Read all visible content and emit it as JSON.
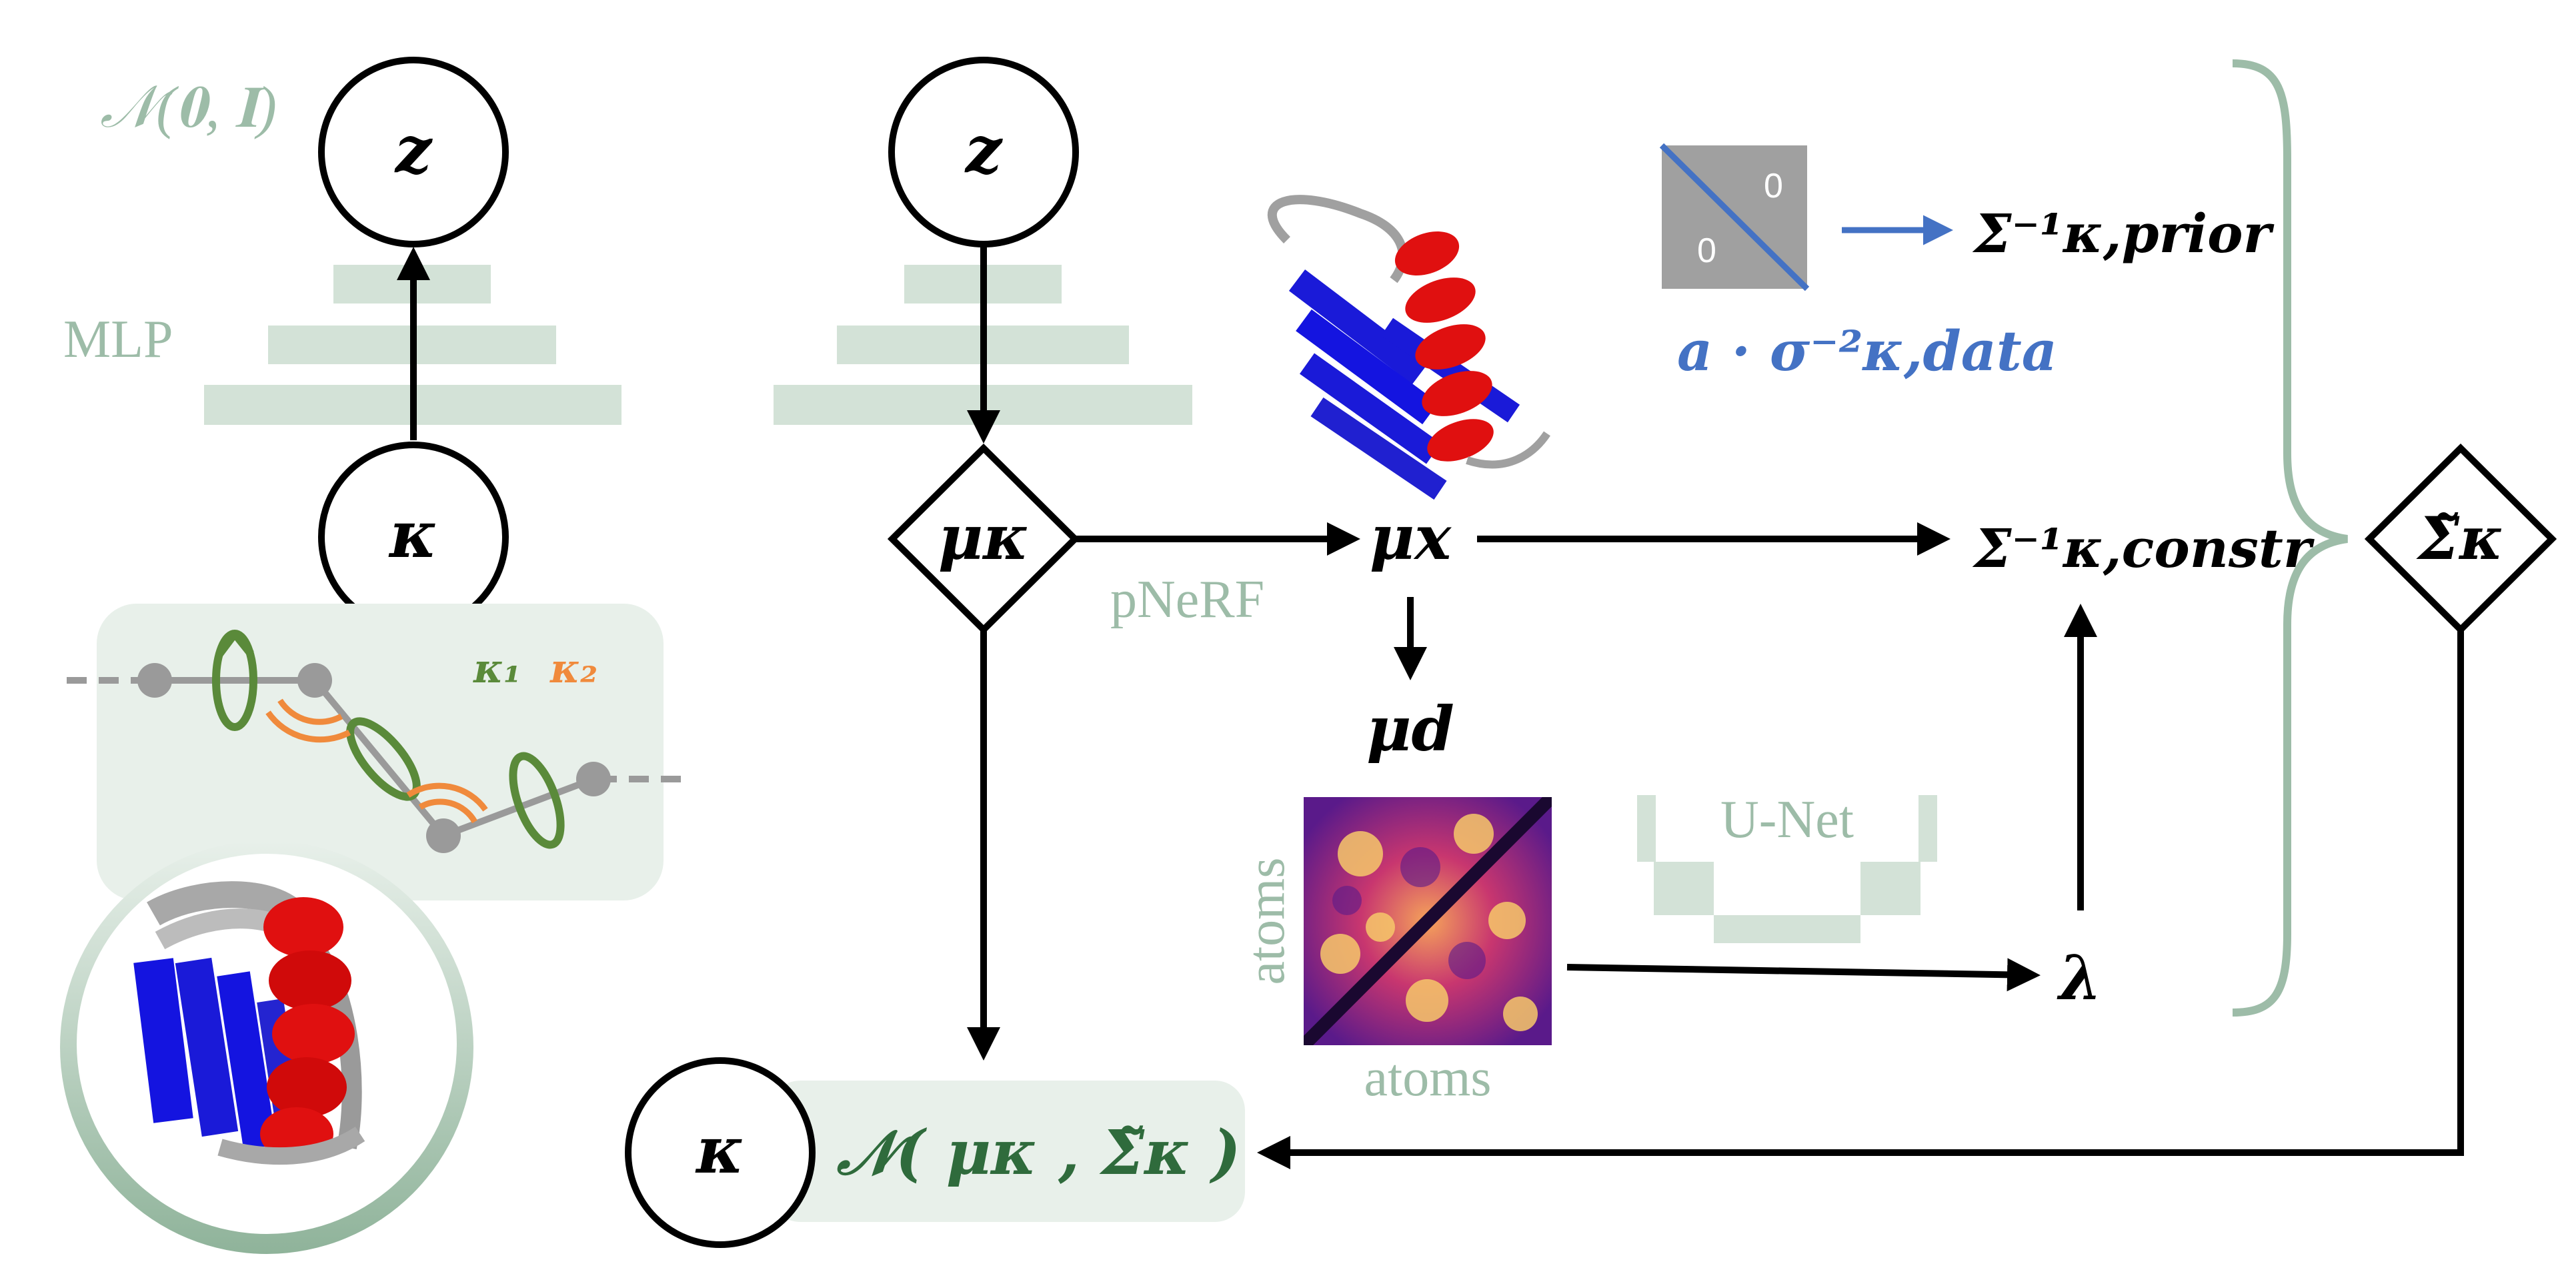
{
  "left_panel": {
    "prior_label": "𝒩(𝟎, 𝐈)",
    "z_node": "z",
    "mlp_label": "MLP",
    "kappa_node": "κ",
    "kappa1_label": "κ₁",
    "kappa2_label": "κ₂"
  },
  "center_panel": {
    "z_node": "z",
    "mu_kappa_node": "μκ",
    "pnerf_label": "pNeRF",
    "mu_x_label": "μx",
    "mu_d_label": "μd",
    "atoms_x_label": "atoms",
    "atoms_y_label": "atoms",
    "unet_label": "U-Net",
    "lambda_label": "λ",
    "output_kappa_node": "κ",
    "output_dist_label": "𝒩( μκ , Σ̃κ )"
  },
  "right_panel": {
    "matrix_entry_top": "0",
    "matrix_entry_bottom": "0",
    "prior_precision_label": "Σ⁻¹κ,prior",
    "data_scale_label": "a · σ⁻²κ,data",
    "constr_precision_label": "Σ⁻¹κ,constr",
    "sigma_tilde_node": "Σ̃κ"
  },
  "colors": {
    "pale_green": "#d3e2d7",
    "label_green": "#9dbca8",
    "dark_green": "#2f6b3c",
    "torsion_green": "#5a8a3a",
    "angle_orange": "#f08a3c",
    "arrow_blue": "#4472c4",
    "helix_red": "#e01010",
    "sheet_blue": "#1a1ad8"
  }
}
